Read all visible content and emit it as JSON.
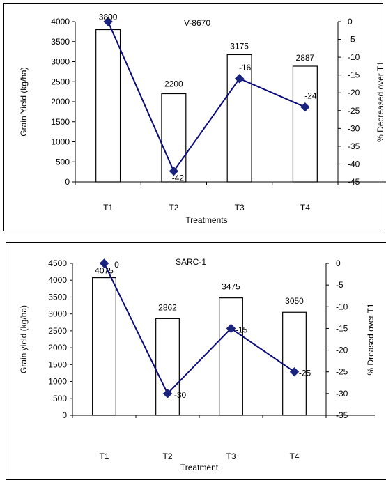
{
  "chart_data": [
    {
      "type": "bar",
      "title": "V-8670",
      "xlabel": "Treatments",
      "ylabel": "Grain Yield (kg/ha)",
      "y2label": "% Decreased over T1",
      "categories": [
        "T1",
        "T2",
        "T3",
        "T4"
      ],
      "ylim": [
        0,
        4000
      ],
      "yticks": [
        0,
        500,
        1000,
        1500,
        2000,
        2500,
        3000,
        3500,
        4000
      ],
      "y2lim": [
        -45,
        0
      ],
      "y2ticks": [
        0,
        -5,
        -10,
        -15,
        -20,
        -25,
        -30,
        -35,
        -40,
        -45
      ],
      "bars": {
        "values": [
          3800,
          2200,
          3175,
          2887
        ],
        "labels": [
          "3800",
          "2200",
          "3175",
          "2887"
        ]
      },
      "line": {
        "values": [
          0,
          -42,
          -16,
          -24
        ],
        "labels": [
          "",
          "-42",
          "-16",
          "-24"
        ]
      },
      "colors": {
        "bar_fill": "#ffffff",
        "bar_stroke": "#000000",
        "line": "#0a0a78",
        "marker": "#1a237e"
      }
    },
    {
      "type": "bar",
      "title": "SARC-1",
      "xlabel": "Treatment",
      "ylabel": "Grain yield (kg/ha)",
      "y2label": "% Dreased over T1",
      "categories": [
        "T1",
        "T2",
        "T3",
        "T4"
      ],
      "ylim": [
        0,
        4500
      ],
      "yticks": [
        0,
        500,
        1000,
        1500,
        2000,
        2500,
        3000,
        3500,
        4000,
        4500
      ],
      "y2lim": [
        -35,
        0
      ],
      "y2ticks": [
        0,
        -5,
        -10,
        -15,
        -20,
        -25,
        -30,
        -35
      ],
      "bars": {
        "values": [
          4075,
          2862,
          3475,
          3050
        ],
        "labels": [
          "4075",
          "2862",
          "3475",
          "3050"
        ]
      },
      "line": {
        "values": [
          0,
          -30,
          -15,
          -25
        ],
        "labels": [
          "0",
          "-30",
          "-15",
          "-25"
        ]
      },
      "colors": {
        "bar_fill": "#ffffff",
        "bar_stroke": "#000000",
        "line": "#0a0a78",
        "marker": "#1a237e"
      }
    }
  ]
}
